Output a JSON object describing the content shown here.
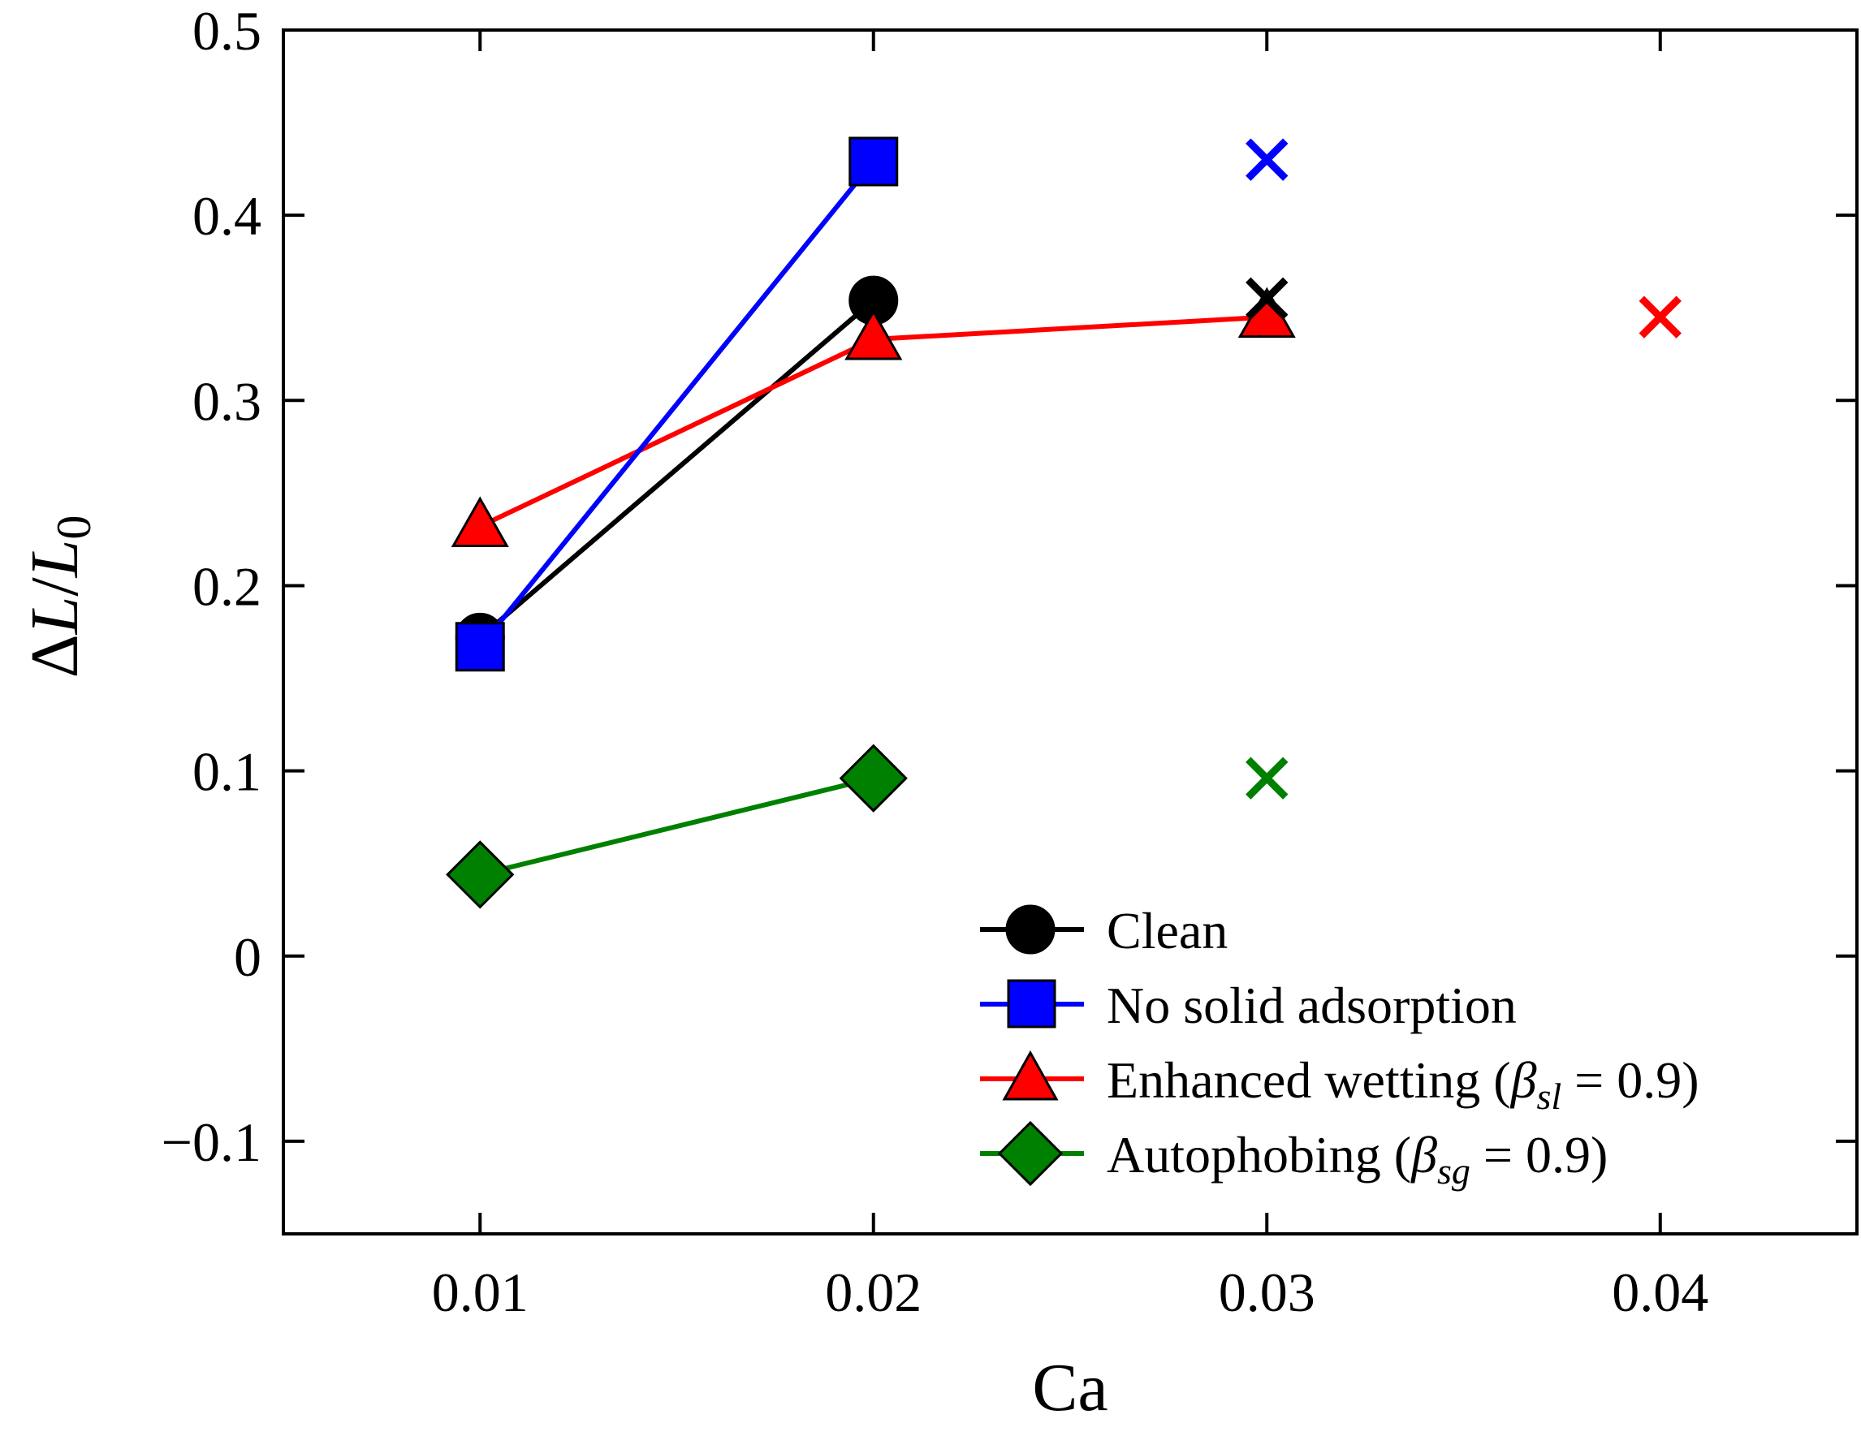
{
  "chart_data": {
    "type": "line",
    "xlabel": "Ca",
    "ylabel": {
      "delta": "Δ",
      "var": "L",
      "slash": "/",
      "var0": "L",
      "sub": "0"
    },
    "xlim": [
      0.005,
      0.045
    ],
    "ylim": [
      -0.15,
      0.5
    ],
    "xticks": [
      "0.01",
      "0.02",
      "0.03",
      "0.04"
    ],
    "yticks": [
      "−0.1",
      "0",
      "0.1",
      "0.2",
      "0.3",
      "0.4",
      "0.5"
    ],
    "series": [
      {
        "key": "clean",
        "name": "Clean",
        "color": "#000000",
        "marker": "circle",
        "x": [
          0.01,
          0.02
        ],
        "y": [
          0.172,
          0.354
        ],
        "cross": [
          0.03,
          0.355
        ]
      },
      {
        "key": "nosolid",
        "name": "No solid adsorption",
        "color": "#0000ff",
        "marker": "square",
        "x": [
          0.01,
          0.02
        ],
        "y": [
          0.167,
          0.429
        ],
        "cross": [
          0.03,
          0.43
        ]
      },
      {
        "key": "enhanced",
        "name": "Enhanced wetting (",
        "name_beta": "β",
        "name_sub": "sl",
        "name_tail": " = 0.9)",
        "color": "#ff0000",
        "marker": "triangle",
        "x": [
          0.01,
          0.02,
          0.03
        ],
        "y": [
          0.232,
          0.333,
          0.345
        ],
        "cross": [
          0.04,
          0.345
        ]
      },
      {
        "key": "auto",
        "name": "Autophobing (",
        "name_beta": "β",
        "name_sub": "sg",
        "name_tail": " = 0.9)",
        "color": "#008000",
        "marker": "diamond",
        "x": [
          0.01,
          0.02
        ],
        "y": [
          0.044,
          0.096
        ],
        "cross": [
          0.03,
          0.096
        ]
      }
    ],
    "legend_position": "bottom-right",
    "grid": false
  }
}
